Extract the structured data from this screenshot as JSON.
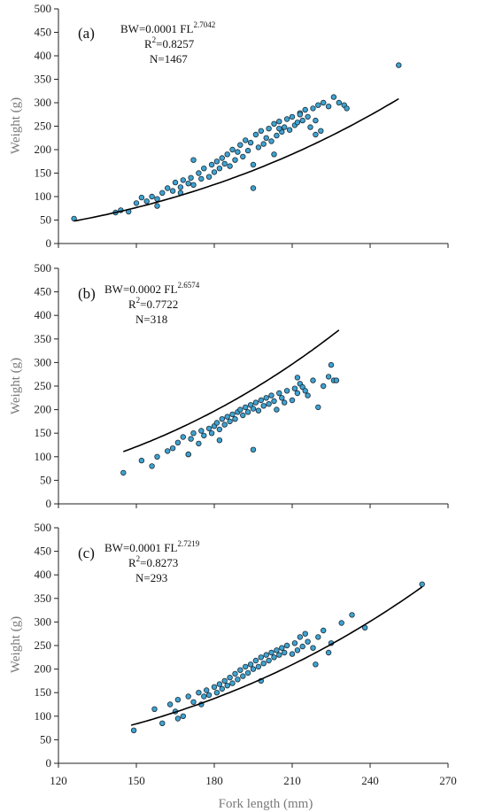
{
  "chart_data": [
    {
      "type": "scatter",
      "panel_label": "(a)",
      "equation": {
        "prefix": "BW=0.0001 FL",
        "exponent": "2.7042",
        "r2_prefix": "R",
        "r2_sup": "2",
        "r2_value": "=0.8257",
        "n": "N=1467"
      },
      "fit": {
        "a": 0.0001,
        "b": 2.7042,
        "x_range": [
          126,
          251
        ]
      },
      "x": [
        126,
        142,
        144,
        147,
        150,
        152,
        154,
        156,
        158,
        160,
        162,
        164,
        165,
        167,
        168,
        170,
        171,
        172,
        174,
        175,
        176,
        178,
        179,
        180,
        181,
        182,
        183,
        184,
        185,
        186,
        187,
        188,
        189,
        190,
        191,
        192,
        193,
        194,
        195,
        196,
        197,
        198,
        199,
        200,
        201,
        202,
        203,
        204,
        205,
        206,
        207,
        208,
        209,
        210,
        211,
        212,
        213,
        214,
        215,
        216,
        217,
        218,
        219,
        220,
        221,
        222,
        224,
        226,
        228,
        230,
        231,
        251,
        195,
        167,
        158,
        203,
        213,
        205,
        172,
        219
      ],
      "y": [
        53,
        66,
        71,
        68,
        86,
        98,
        90,
        100,
        95,
        108,
        118,
        112,
        130,
        120,
        135,
        128,
        140,
        125,
        150,
        138,
        160,
        142,
        168,
        152,
        175,
        160,
        182,
        170,
        190,
        165,
        200,
        178,
        195,
        210,
        185,
        220,
        198,
        215,
        118,
        232,
        205,
        240,
        212,
        225,
        245,
        218,
        255,
        230,
        260,
        238,
        248,
        265,
        242,
        270,
        252,
        258,
        278,
        262,
        285,
        270,
        248,
        288,
        262,
        295,
        240,
        300,
        292,
        312,
        300,
        295,
        288,
        380,
        168,
        108,
        80,
        190,
        275,
        245,
        178,
        232
      ],
      "xlim": [
        120,
        270
      ],
      "ylim": [
        0,
        500
      ],
      "xticks": [
        "120",
        "150",
        "180",
        "210",
        "240",
        "270"
      ],
      "yticks": [
        "0",
        "50",
        "100",
        "150",
        "200",
        "250",
        "300",
        "350",
        "400",
        "450",
        "500"
      ],
      "xlabel": "",
      "ylabel": "Weight (g)",
      "grid": false
    },
    {
      "type": "scatter",
      "panel_label": "(b)",
      "equation": {
        "prefix": "BW=0.0002 FL",
        "exponent": "2.6574",
        "r2_prefix": "R",
        "r2_sup": "2",
        "r2_value": "=0.7722",
        "n": "N=318"
      },
      "fit": {
        "a": 0.0002,
        "b": 2.6574,
        "x_range": [
          145,
          228
        ]
      },
      "x": [
        145,
        152,
        156,
        158,
        162,
        164,
        166,
        168,
        170,
        171,
        172,
        174,
        175,
        176,
        178,
        179,
        180,
        181,
        182,
        183,
        184,
        185,
        186,
        187,
        188,
        189,
        190,
        191,
        192,
        193,
        194,
        195,
        196,
        197,
        198,
        199,
        200,
        201,
        202,
        203,
        204,
        205,
        206,
        207,
        208,
        210,
        211,
        212,
        213,
        214,
        215,
        216,
        218,
        220,
        222,
        224,
        225,
        226,
        227,
        170,
        195,
        182,
        212
      ],
      "y": [
        66,
        92,
        80,
        100,
        112,
        118,
        130,
        142,
        105,
        138,
        150,
        128,
        155,
        145,
        160,
        150,
        165,
        172,
        158,
        180,
        168,
        185,
        175,
        190,
        180,
        195,
        200,
        188,
        205,
        195,
        210,
        202,
        215,
        198,
        220,
        208,
        225,
        212,
        230,
        218,
        200,
        235,
        225,
        215,
        240,
        220,
        245,
        235,
        255,
        248,
        240,
        230,
        262,
        205,
        250,
        270,
        295,
        262,
        262,
        105,
        115,
        135,
        268
      ],
      "xlim": [
        120,
        270
      ],
      "ylim": [
        0,
        500
      ],
      "xticks": [
        "120",
        "150",
        "180",
        "210",
        "240",
        "270"
      ],
      "yticks": [
        "0",
        "50",
        "100",
        "150",
        "200",
        "250",
        "300",
        "350",
        "400",
        "450",
        "500"
      ],
      "xlabel": "",
      "ylabel": "Weight (g)",
      "grid": false
    },
    {
      "type": "scatter",
      "panel_label": "(c)",
      "equation": {
        "prefix": "BW=0.0001 FL",
        "exponent": "2.7219",
        "r2_prefix": "R",
        "r2_sup": "2",
        "r2_value": "=0.8273",
        "n": "N=293"
      },
      "fit": {
        "a": 0.0001,
        "b": 2.7219,
        "x_range": [
          148,
          260
        ]
      },
      "x": [
        149,
        157,
        160,
        163,
        165,
        166,
        168,
        170,
        172,
        174,
        175,
        177,
        178,
        180,
        181,
        182,
        183,
        184,
        185,
        186,
        187,
        188,
        189,
        190,
        191,
        192,
        193,
        194,
        195,
        196,
        197,
        198,
        199,
        200,
        201,
        202,
        203,
        204,
        205,
        206,
        207,
        208,
        210,
        211,
        212,
        213,
        214,
        215,
        216,
        218,
        220,
        222,
        224,
        225,
        229,
        233,
        238,
        260,
        166,
        176,
        198,
        219
      ],
      "y": [
        70,
        115,
        85,
        125,
        110,
        135,
        100,
        142,
        130,
        150,
        125,
        155,
        145,
        162,
        150,
        168,
        158,
        175,
        165,
        182,
        170,
        190,
        178,
        198,
        185,
        205,
        192,
        210,
        200,
        218,
        205,
        225,
        212,
        230,
        218,
        235,
        225,
        240,
        230,
        245,
        235,
        250,
        232,
        255,
        240,
        268,
        248,
        275,
        258,
        245,
        268,
        282,
        235,
        255,
        298,
        315,
        288,
        380,
        95,
        142,
        175,
        210
      ],
      "xlim": [
        120,
        270
      ],
      "ylim": [
        0,
        500
      ],
      "xticks": [
        "120",
        "150",
        "180",
        "210",
        "240",
        "270"
      ],
      "yticks": [
        "0",
        "50",
        "100",
        "150",
        "200",
        "250",
        "300",
        "350",
        "400",
        "450",
        "500"
      ],
      "xlabel": "Fork length (mm)",
      "ylabel": "Weight (g)",
      "grid": false
    }
  ],
  "style": {
    "marker_fill": "#3ea3d0",
    "marker_edge": "#1b2a36",
    "fit_color": "#000000",
    "axis_color": "#222222",
    "label_color": "#7a7a7a"
  }
}
